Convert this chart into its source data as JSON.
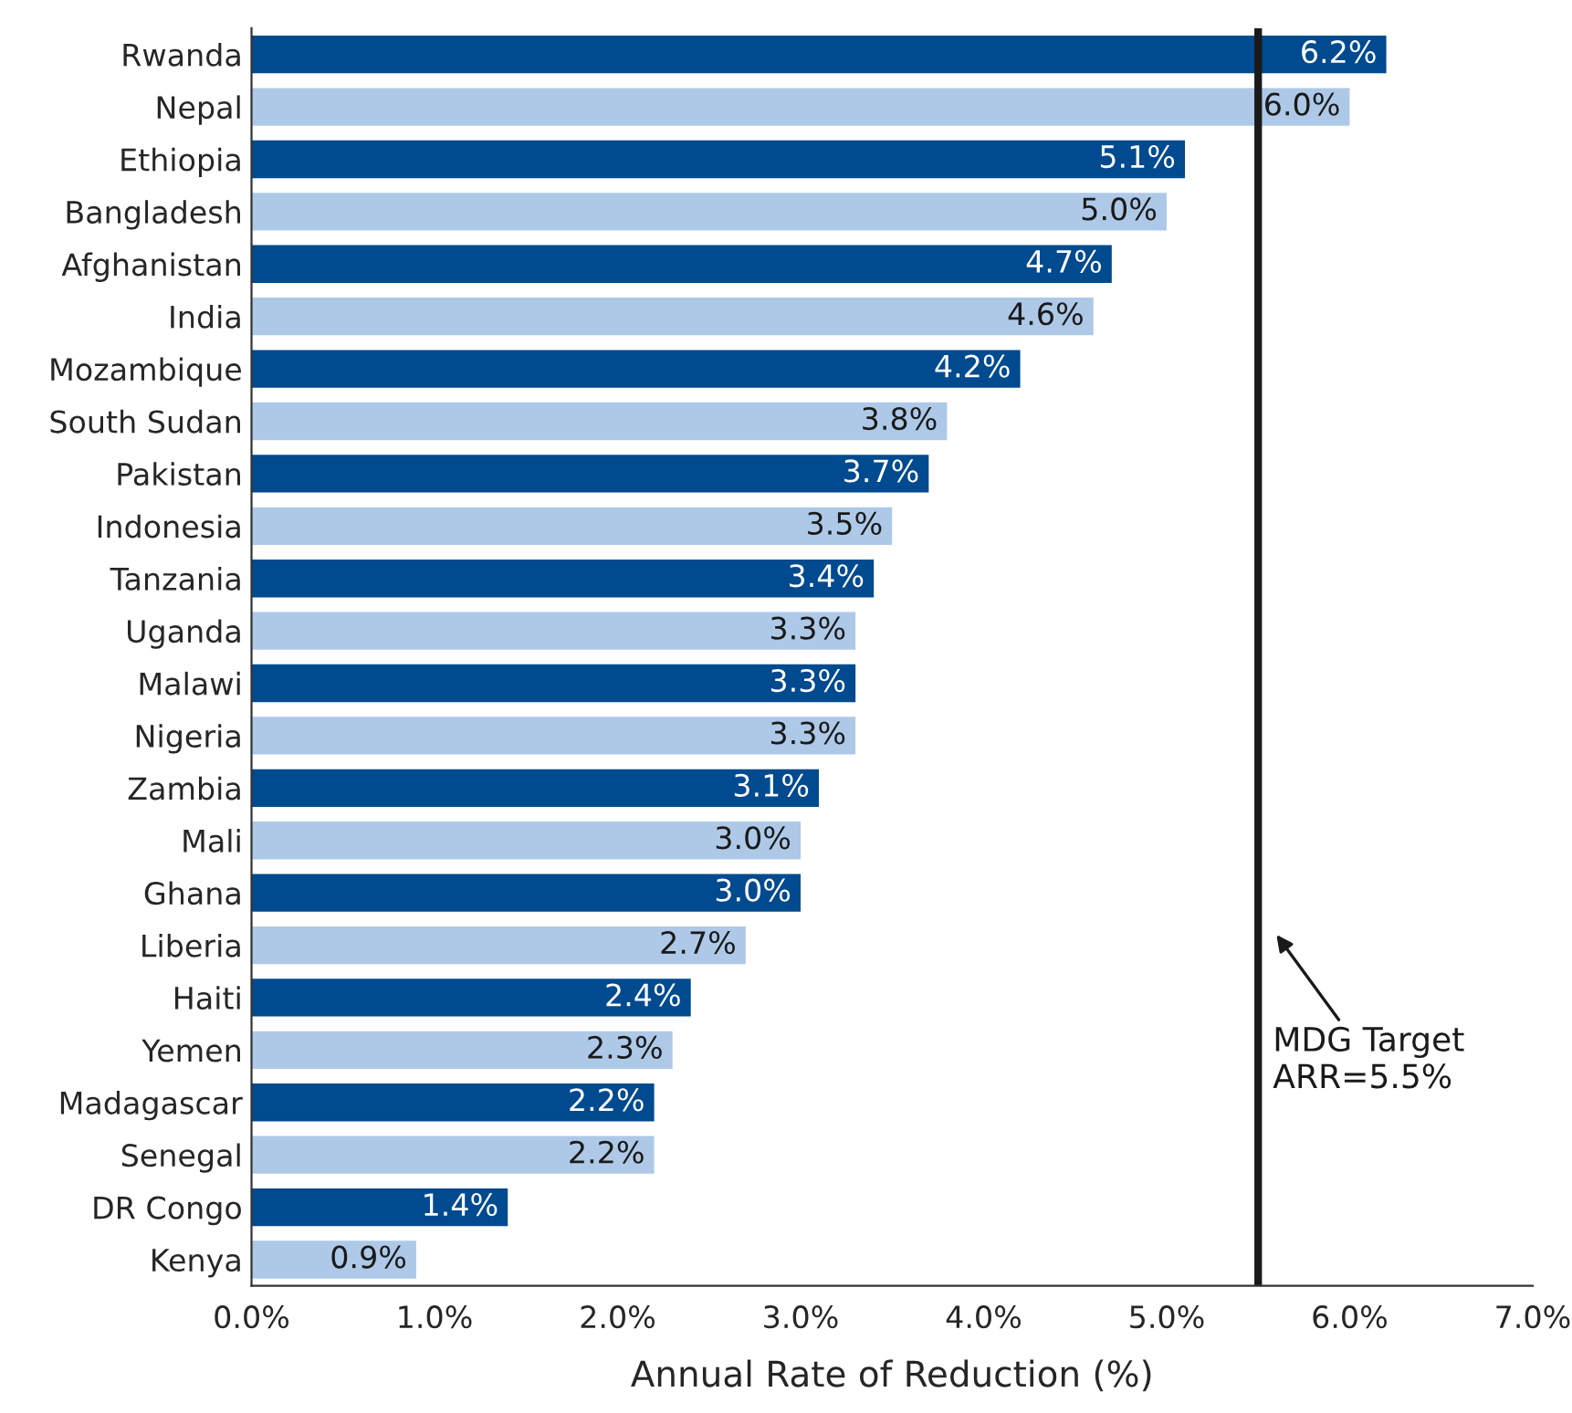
{
  "chart_data": {
    "type": "bar",
    "orientation": "horizontal",
    "xlabel": "Annual Rate of Reduction (%)",
    "categories": [
      "Rwanda",
      "Nepal",
      "Ethiopia",
      "Bangladesh",
      "Afghanistan",
      "India",
      "Mozambique",
      "South Sudan",
      "Pakistan",
      "Indonesia",
      "Tanzania",
      "Uganda",
      "Malawi",
      "Nigeria",
      "Zambia",
      "Mali",
      "Ghana",
      "Liberia",
      "Haiti",
      "Yemen",
      "Madagascar",
      "Senegal",
      "DR Congo",
      "Kenya"
    ],
    "values": [
      6.2,
      6.0,
      5.1,
      5.0,
      4.7,
      4.6,
      4.2,
      3.8,
      3.7,
      3.5,
      3.4,
      3.3,
      3.3,
      3.3,
      3.1,
      3.0,
      3.0,
      2.7,
      2.4,
      2.3,
      2.2,
      2.2,
      1.4,
      0.9
    ],
    "value_labels": [
      "6.2%",
      "6.0%",
      "5.1%",
      "5.0%",
      "4.7%",
      "4.6%",
      "4.2%",
      "3.8%",
      "3.7%",
      "3.5%",
      "3.4%",
      "3.3%",
      "3.3%",
      "3.3%",
      "3.1%",
      "3.0%",
      "3.0%",
      "2.7%",
      "2.4%",
      "2.3%",
      "2.2%",
      "2.2%",
      "1.4%",
      "0.9%"
    ],
    "colors": [
      "#004a8f",
      "#aec9e8",
      "#004a8f",
      "#aec9e8",
      "#004a8f",
      "#aec9e8",
      "#004a8f",
      "#aec9e8",
      "#004a8f",
      "#aec9e8",
      "#004a8f",
      "#aec9e8",
      "#004a8f",
      "#aec9e8",
      "#004a8f",
      "#aec9e8",
      "#004a8f",
      "#aec9e8",
      "#004a8f",
      "#aec9e8",
      "#004a8f",
      "#aec9e8",
      "#004a8f",
      "#aec9e8"
    ],
    "xlim": [
      0,
      7
    ],
    "xticks": [
      {
        "value": 0,
        "label": "0.0%"
      },
      {
        "value": 1,
        "label": "1.0%"
      },
      {
        "value": 2,
        "label": "2.0%"
      },
      {
        "value": 3,
        "label": "3.0%"
      },
      {
        "value": 4,
        "label": "4.0%"
      },
      {
        "value": 5,
        "label": "5.0%"
      },
      {
        "value": 6,
        "label": "6.0%"
      },
      {
        "value": 7,
        "label": "7.0%"
      }
    ],
    "ref_lines": [
      {
        "axis": "x",
        "value": 5.5,
        "label": "MDG Target\nARR=5.5%",
        "color": "#1a1a1a"
      }
    ],
    "grid": false
  }
}
